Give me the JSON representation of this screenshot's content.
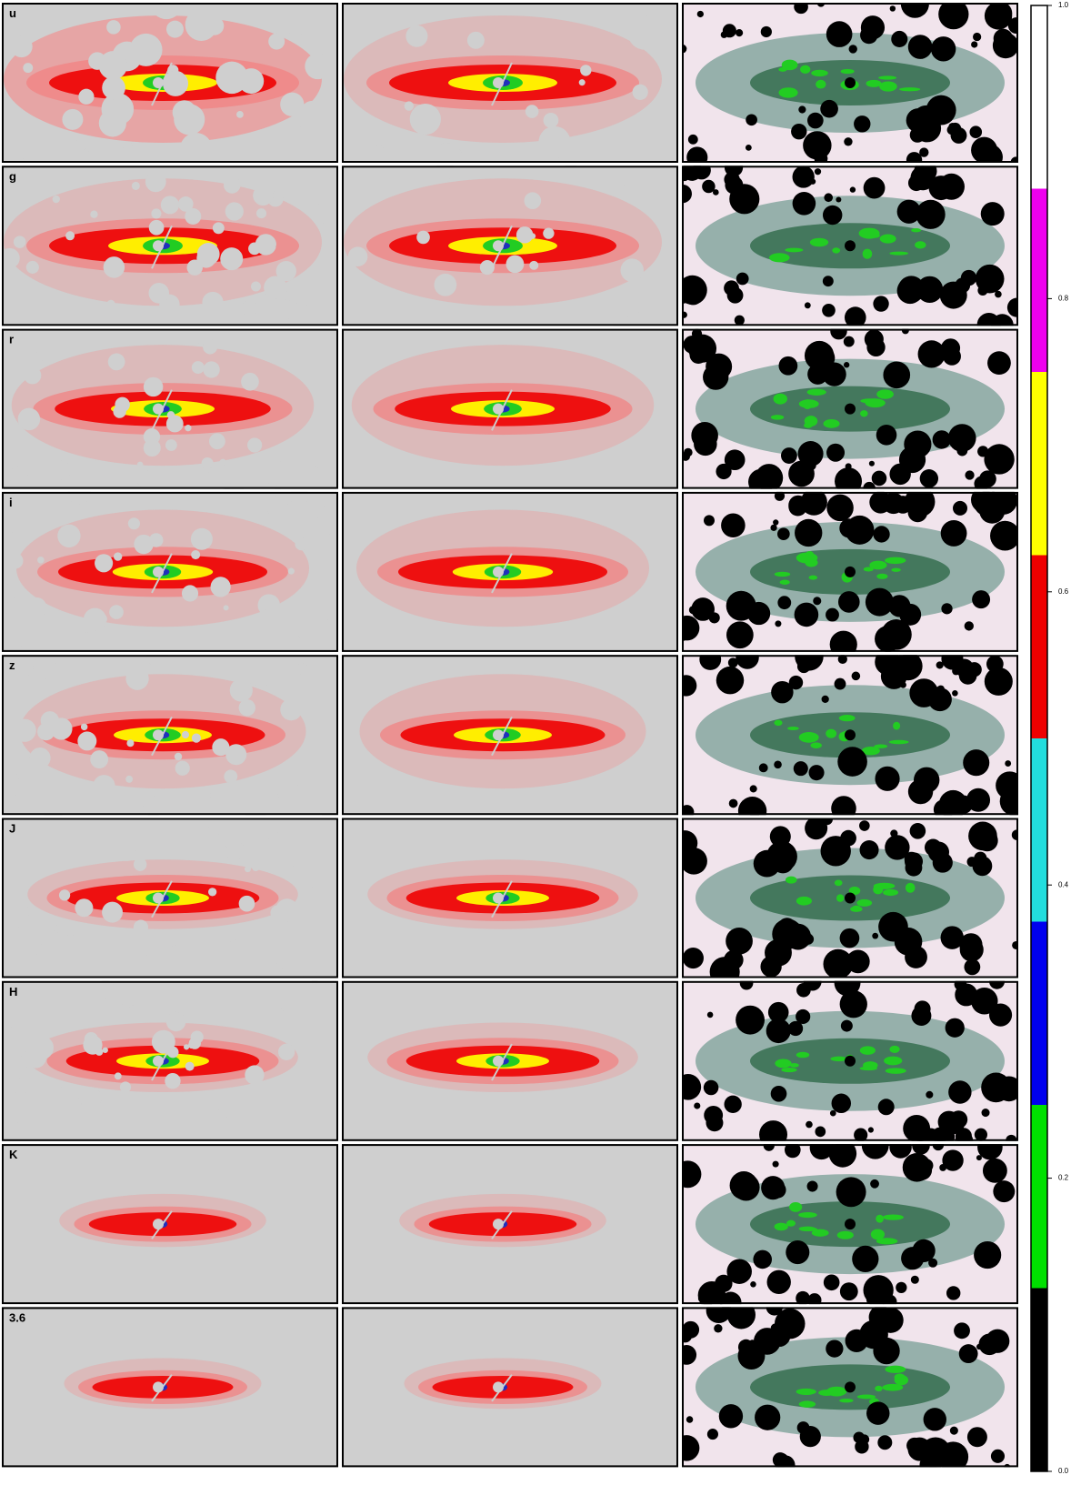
{
  "panels": {
    "bands": [
      "u",
      "g",
      "r",
      "i",
      "z",
      "J",
      "H",
      "K",
      "3.6"
    ]
  },
  "colorbar": {
    "lim": [
      0,
      1
    ],
    "ticks": [
      {
        "value": 0,
        "label": "0.0"
      },
      {
        "value": 0.2,
        "label": "0.2"
      },
      {
        "value": 0.4,
        "label": "0.4"
      },
      {
        "value": 0.6,
        "label": "0.6"
      },
      {
        "value": 0.8,
        "label": "0.8"
      },
      {
        "value": 1,
        "label": "1.0"
      }
    ],
    "segments": [
      {
        "from": 0,
        "to": 0.125,
        "color": "#000000"
      },
      {
        "from": 0.125,
        "to": 0.25,
        "color": "#00e000"
      },
      {
        "from": 0.25,
        "to": 0.375,
        "color": "#0000ee"
      },
      {
        "from": 0.375,
        "to": 0.5,
        "color": "#22dddd"
      },
      {
        "from": 0.5,
        "to": 0.625,
        "color": "#ee0000"
      },
      {
        "from": 0.625,
        "to": 0.75,
        "color": "#ffff00"
      },
      {
        "from": 0.75,
        "to": 0.875,
        "color": "#ee00ee"
      },
      {
        "from": 0.875,
        "to": 1,
        "color": "#ffffff"
      }
    ]
  }
}
